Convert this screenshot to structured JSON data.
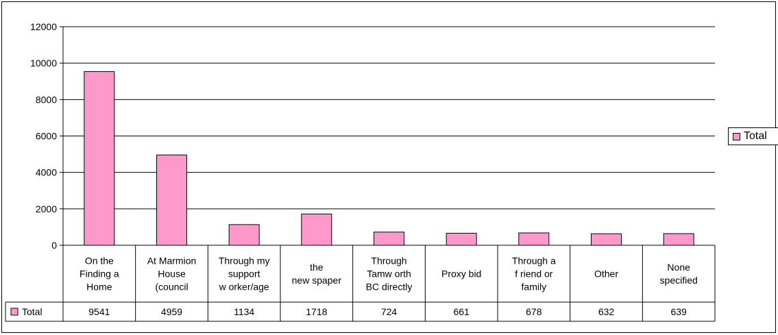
{
  "chart_data": {
    "type": "bar",
    "categories": [
      [
        "On the",
        "Finding a",
        "Home"
      ],
      [
        "At Marmion",
        "House",
        "(council"
      ],
      [
        "Through my",
        "support",
        "w orker/age"
      ],
      [
        "the",
        "new spaper"
      ],
      [
        "Through",
        "Tamw orth",
        "BC directly"
      ],
      [
        "Proxy bid"
      ],
      [
        "Through a",
        "f riend or",
        "family"
      ],
      [
        "Other"
      ],
      [
        "None",
        "specified"
      ]
    ],
    "series": [
      {
        "name": "Total",
        "values": [
          9541,
          4959,
          1134,
          1718,
          724,
          661,
          678,
          632,
          639
        ]
      }
    ],
    "ylim": [
      0,
      12000
    ],
    "yticks": [
      0,
      2000,
      4000,
      6000,
      8000,
      10000,
      12000
    ],
    "grid": true,
    "legend_position": "right",
    "data_table": true,
    "colors": {
      "bar_fill": "#ff99cc",
      "bar_stroke": "#000000",
      "grid": "#000000"
    }
  },
  "legend": {
    "label": "Total"
  }
}
